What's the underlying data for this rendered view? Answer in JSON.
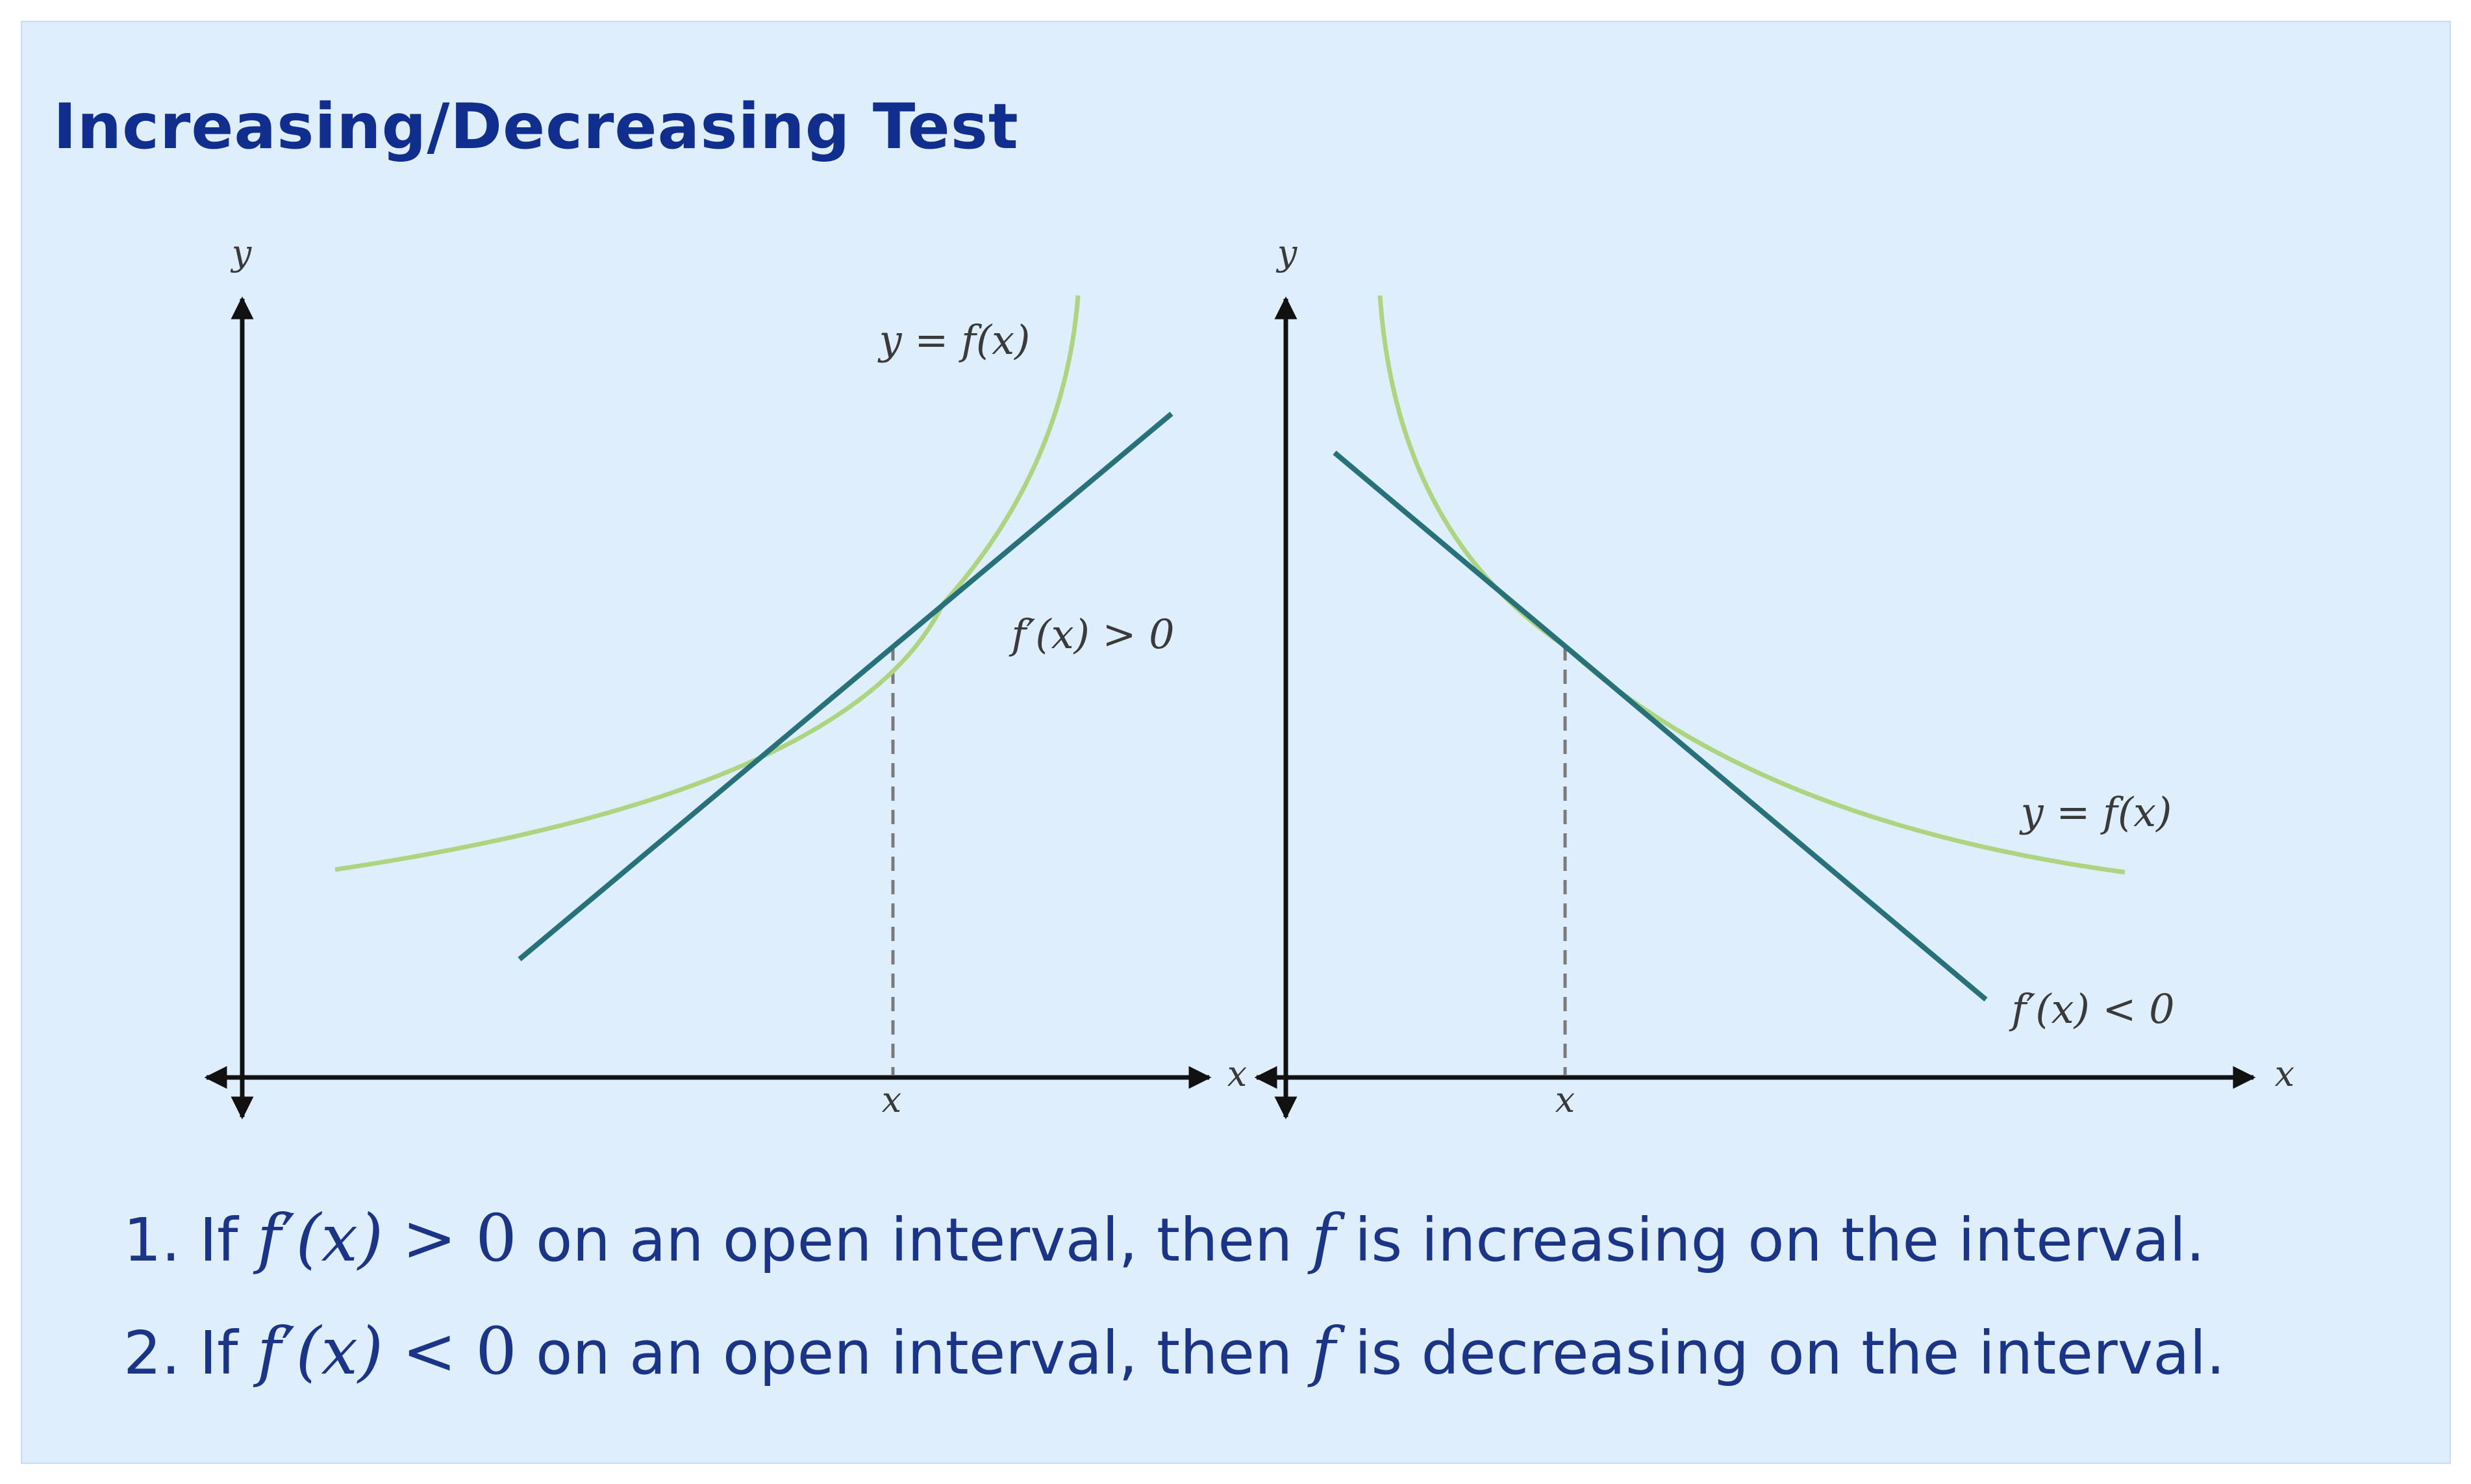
{
  "heading": "Increasing/Decreasing Test",
  "left_graph": {
    "y_axis_label": "y",
    "x_axis_label": "x",
    "x_tick_label": "x",
    "curve_label": "y = f(x)",
    "tangent_label": "f′(x) > 0"
  },
  "right_graph": {
    "y_axis_label": "y",
    "x_axis_label": "x",
    "x_tick_label": "x",
    "curve_label": "y = f(x)",
    "tangent_label": "f′(x) < 0"
  },
  "colors": {
    "curve": "#add47f",
    "tangent": "#27727a",
    "axis": "#111111",
    "heading": "#0f2e8e",
    "text": "#1a3488",
    "background": "#deeefd"
  },
  "statements": [
    {
      "number": "1.",
      "prefix": "If",
      "f": "f",
      "prime": "′",
      "arg": "(x)",
      "rel": ">",
      "zero": "0",
      "middle": "on an open interval, then",
      "f2": "f",
      "suffix": "is increasing on the interval."
    },
    {
      "number": "2.",
      "prefix": "If",
      "f": "f",
      "prime": "′",
      "arg": "(x)",
      "rel": "<",
      "zero": "0",
      "middle": "on an open interval, then",
      "f2": "f",
      "suffix": "is decreasing on the interval."
    }
  ]
}
